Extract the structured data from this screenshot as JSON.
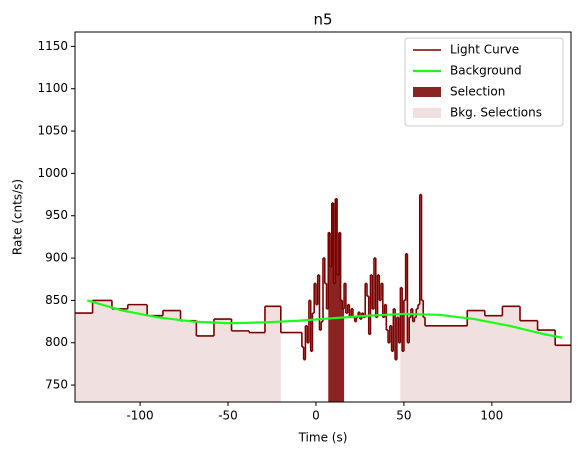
{
  "chart_data": {
    "type": "step",
    "title": "n5",
    "xlabel": "Time (s)",
    "ylabel": "Rate (cnts/s)",
    "xlim": [
      -137,
      145
    ],
    "ylim": [
      730,
      1167
    ],
    "xticks": [
      -100,
      -50,
      0,
      50,
      100
    ],
    "yticks": [
      750,
      800,
      850,
      900,
      950,
      1000,
      1050,
      1100,
      1150
    ],
    "legend": "upper right",
    "series": [
      {
        "name": "Light Curve",
        "color": "#7a0000",
        "bins": [
          -137,
          -127,
          -116,
          -107,
          -96,
          -87,
          -77,
          -68,
          -58,
          -48,
          -38,
          -29,
          -20,
          -8,
          -7,
          -6,
          -5,
          -4,
          -3,
          -2,
          -1,
          0,
          1,
          2,
          3,
          4,
          5,
          6,
          7,
          8,
          9,
          10,
          11,
          12,
          13,
          14,
          15,
          16,
          17,
          18,
          19,
          20,
          21,
          22,
          23,
          24,
          25,
          26,
          27,
          28,
          29,
          30,
          31,
          32,
          33,
          34,
          35,
          36,
          37,
          38,
          39,
          40,
          41,
          42,
          43,
          44,
          45,
          46,
          47,
          48,
          49,
          50,
          51,
          52,
          53,
          54,
          55,
          56,
          57,
          58,
          59,
          60,
          61,
          62,
          86,
          96,
          106,
          116,
          126,
          136,
          145
        ],
        "values": [
          835,
          850,
          840,
          845,
          832,
          838,
          826,
          808,
          828,
          814,
          812,
          843,
          812,
          795,
          780,
          820,
          800,
          850,
          790,
          835,
          870,
          845,
          880,
          815,
          825,
          900,
          870,
          840,
          930,
          890,
          965,
          870,
          970,
          880,
          930,
          850,
          840,
          870,
          835,
          845,
          830,
          840,
          830,
          825,
          830,
          836,
          828,
          835,
          830,
          870,
          855,
          810,
          880,
          840,
          900,
          830,
          880,
          850,
          870,
          830,
          845,
          815,
          800,
          820,
          790,
          840,
          780,
          830,
          800,
          865,
          790,
          850,
          905,
          800,
          830,
          840,
          825,
          830,
          840,
          845,
          975,
          850,
          830,
          820,
          838,
          832,
          843,
          826,
          815,
          797
        ]
      },
      {
        "name": "Background",
        "color": "#1aff1a",
        "x": [
          -130,
          -110,
          -90,
          -70,
          -50,
          -30,
          -10,
          10,
          30,
          50,
          70,
          90,
          110,
          130,
          140
        ],
        "values": [
          850,
          838,
          830,
          825,
          823,
          824,
          826,
          829,
          832,
          834,
          833,
          828,
          820,
          810,
          806
        ]
      }
    ],
    "selections": [
      {
        "name": "Selection",
        "color": "#8b2323",
        "ranges": [
          [
            7,
            16
          ]
        ]
      },
      {
        "name": "Bkg. Selections",
        "color": "#f0e0e0",
        "ranges": [
          [
            -137,
            -20
          ],
          [
            48,
            145
          ]
        ]
      }
    ]
  }
}
